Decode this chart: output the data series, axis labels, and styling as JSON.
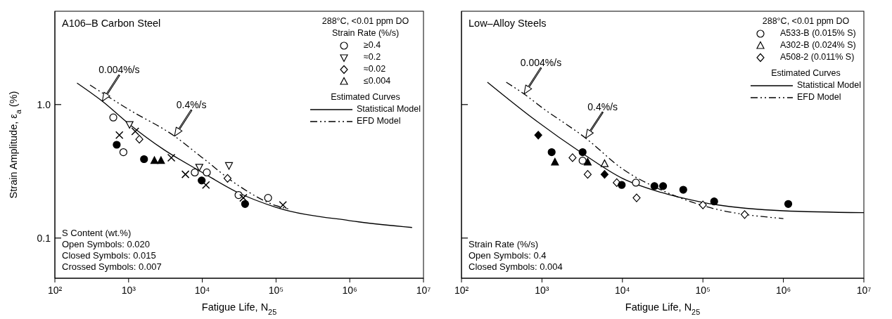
{
  "chart_data": [
    {
      "type": "scatter",
      "title": "A106–B Carbon Steel",
      "subtitle": "288°C, <0.01 ppm DO",
      "legend_title": "Strain Rate (%/s)",
      "xlabel": "Fatigue Life, N$_{25}$",
      "ylabel": "Strain Amplitude, ε$_{a}$ (%)",
      "log": "xy",
      "xlim": [
        100,
        10000000
      ],
      "ylim": [
        0.05,
        5
      ],
      "xticks": [
        {
          "value": 100,
          "label": "10²"
        },
        {
          "value": 1000,
          "label": "10³"
        },
        {
          "value": 10000,
          "label": "10⁴"
        },
        {
          "value": 100000,
          "label": "10⁵"
        },
        {
          "value": 1000000,
          "label": "10⁶"
        },
        {
          "value": 10000000,
          "label": "10⁷"
        }
      ],
      "yticks": [
        {
          "value": 0.1,
          "label": "0.1"
        },
        {
          "value": 1,
          "label": "1.0"
        }
      ],
      "legend": "top right",
      "annotations": [
        "Estimated Curves",
        "S Content (wt.%)",
        "Open Symbols: 0.020",
        "Closed Symbols: 0.015",
        "Crossed Symbols: 0.007",
        {
          "text": "0.004%/s",
          "x": 440,
          "y": 1.06
        },
        {
          "text": "0.4%/s",
          "x": 4200,
          "y": 0.58
        }
      ],
      "series": [
        {
          "name": "≥0.4",
          "marker": "circle",
          "color": "#ffffff",
          "x": [
            620,
            850,
            7900,
            11500,
            31000,
            78000
          ],
          "values": [
            0.8,
            0.44,
            0.31,
            0.31,
            0.21,
            0.2
          ]
        },
        {
          "name": "≈0.2",
          "marker": "triangle-down",
          "color": "#ffffff",
          "x": [
            1030,
            9100,
            23000
          ],
          "values": [
            0.71,
            0.34,
            0.35
          ]
        },
        {
          "name": "≈0.02",
          "marker": "diamond",
          "color": "#ffffff",
          "x": [
            1400,
            22000
          ],
          "values": [
            0.55,
            0.28
          ]
        },
        {
          "name": "≤0.004",
          "marker": "triangle",
          "color": "#ffffff"
        },
        {
          "marker": "circle",
          "color": "#000000",
          "x": [
            690,
            1620,
            9800,
            38000
          ],
          "values": [
            0.5,
            0.39,
            0.27,
            0.18
          ]
        },
        {
          "marker": "triangle",
          "color": "#000000",
          "x": [
            2240,
            2750
          ],
          "values": [
            0.38,
            0.38
          ]
        },
        {
          "marker": "cross",
          "color": "#000000",
          "x": [
            750,
            1230,
            3800,
            5900,
            11200,
            36000,
            124000
          ],
          "values": [
            0.59,
            0.63,
            0.4,
            0.3,
            0.25,
            0.2,
            0.177
          ]
        },
        {
          "name": "Statistical Model",
          "type": "line",
          "line_style": "solid",
          "color": "#000000",
          "x": [
            200,
            440,
            1000,
            3000,
            10000,
            30000,
            100000,
            1000000,
            7000000
          ],
          "values": [
            1.45,
            1.06,
            0.72,
            0.46,
            0.31,
            0.22,
            0.17,
            0.135,
            0.12
          ]
        },
        {
          "name": "EFD Model",
          "type": "line",
          "line_style": "dashdot",
          "color": "#000000",
          "x": [
            300,
            1000,
            4200,
            10000,
            30000,
            100000,
            150000
          ],
          "values": [
            1.4,
            0.92,
            0.58,
            0.4,
            0.25,
            0.175,
            0.165
          ]
        }
      ]
    },
    {
      "type": "scatter",
      "title": "Low–Alloy Steels",
      "subtitle": "288°C, <0.01 ppm DO",
      "xlabel": "Fatigue Life, N$_{25}$",
      "log": "xy",
      "tick_labels": "x",
      "xlim": [
        100,
        10000000
      ],
      "ylim": [
        0.05,
        5
      ],
      "xticks": [
        {
          "value": 100,
          "label": "10²"
        },
        {
          "value": 1000,
          "label": "10³"
        },
        {
          "value": 10000,
          "label": "10⁴"
        },
        {
          "value": 100000,
          "label": "10⁵"
        },
        {
          "value": 1000000,
          "label": "10⁶"
        },
        {
          "value": 10000000,
          "label": "10⁷"
        }
      ],
      "yticks": [
        0.1,
        1
      ],
      "legend": "top right",
      "annotations": [
        "Estimated Curves",
        "Strain Rate (%/s)",
        "Open Symbols: 0.4",
        "Closed Symbols: 0.004",
        {
          "text": "0.004%/s",
          "x": 600,
          "y": 1.2
        },
        {
          "text": "0.4%/s",
          "x": 3500,
          "y": 0.56
        }
      ],
      "series": [
        {
          "name": "A533-B (0.015% S)",
          "marker": "circle",
          "color": "#ffffff",
          "x": [
            3200,
            14700
          ],
          "values": [
            0.38,
            0.26
          ]
        },
        {
          "name": "A302-B (0.024% S)",
          "marker": "triangle",
          "color": "#ffffff",
          "x": [
            6000
          ],
          "values": [
            0.36
          ]
        },
        {
          "name": "A508-2 (0.011% S)",
          "marker": "diamond",
          "color": "#ffffff",
          "x": [
            2400,
            3700,
            8500,
            15000,
            100000,
            330000
          ],
          "values": [
            0.4,
            0.3,
            0.26,
            0.2,
            0.177,
            0.15
          ]
        },
        {
          "marker": "circle",
          "color": "#000000",
          "x": [
            1320,
            3200,
            9800,
            25000,
            32000,
            57000,
            138000,
            1150000
          ],
          "values": [
            0.44,
            0.44,
            0.25,
            0.245,
            0.245,
            0.23,
            0.188,
            0.18
          ]
        },
        {
          "marker": "triangle",
          "color": "#000000",
          "x": [
            1450,
            3700
          ],
          "values": [
            0.37,
            0.37
          ]
        },
        {
          "marker": "diamond",
          "color": "#000000",
          "x": [
            900,
            6000
          ],
          "values": [
            0.59,
            0.3
          ]
        },
        {
          "name": "Statistical Model",
          "type": "line",
          "line_style": "solid",
          "color": "#000000",
          "x": [
            210,
            790,
            3200,
            10000,
            30000,
            100000,
            1000000,
            10000000
          ],
          "values": [
            1.47,
            0.78,
            0.43,
            0.28,
            0.22,
            0.185,
            0.16,
            0.155
          ]
        },
        {
          "name": "EFD Model",
          "type": "line",
          "line_style": "dashdot",
          "color": "#000000",
          "x": [
            360,
            600,
            1000,
            3500,
            10000,
            30000,
            100000,
            1000000
          ],
          "values": [
            1.47,
            1.2,
            0.95,
            0.56,
            0.33,
            0.23,
            0.175,
            0.14
          ]
        }
      ]
    }
  ]
}
